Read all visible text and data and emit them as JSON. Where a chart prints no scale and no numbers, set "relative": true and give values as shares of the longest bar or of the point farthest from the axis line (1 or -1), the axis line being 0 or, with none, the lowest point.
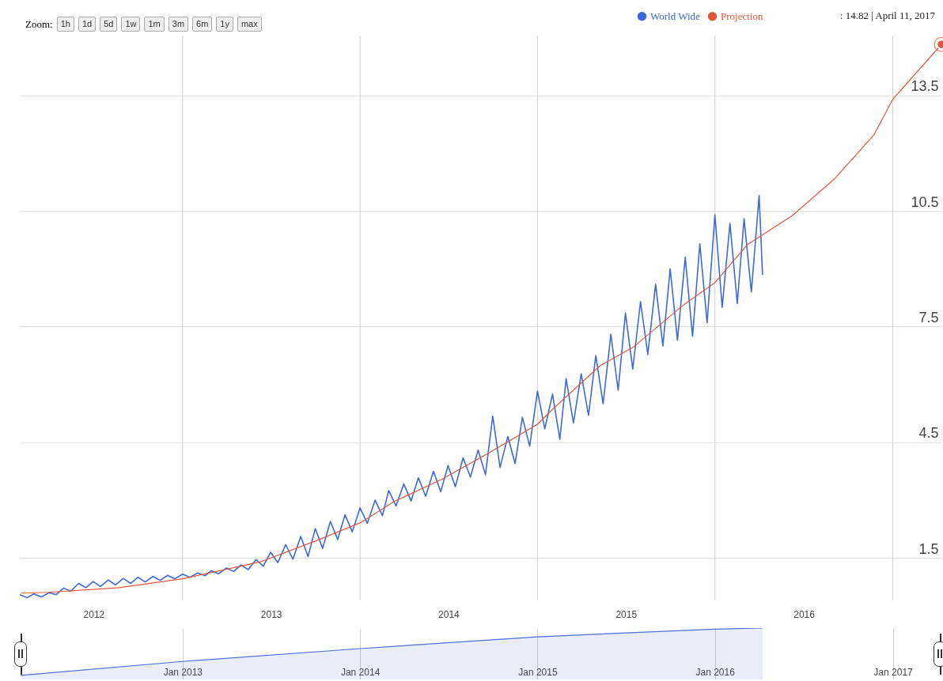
{
  "chart_data": [
    {
      "type": "line",
      "xlim": [
        "2012-02-01",
        "2017-04-11"
      ],
      "ylim": [
        0.4,
        15.05
      ],
      "xticks": [
        {
          "value": "2012-07-02",
          "label": "2012"
        },
        {
          "value": "2013-01-01",
          "label": null
        },
        {
          "value": "2013-07-02",
          "label": "2013"
        },
        {
          "value": "2014-01-01",
          "label": null
        },
        {
          "value": "2014-07-02",
          "label": "2014"
        },
        {
          "value": "2015-01-01",
          "label": null
        },
        {
          "value": "2015-07-02",
          "label": "2015"
        },
        {
          "value": "2016-01-01",
          "label": null
        },
        {
          "value": "2016-07-02",
          "label": "2016"
        },
        {
          "value": "2017-01-01",
          "label": null
        }
      ],
      "yticks": [
        1.5,
        4.5,
        7.5,
        10.5,
        13.5
      ],
      "grid": true,
      "legend": "top right",
      "annotations": [
        "Zoom:",
        "1h",
        "1d",
        "5d",
        "1w",
        "1m",
        "3m",
        "6m",
        "1y",
        "max",
        {
          "text": ": 14.82 | April 11, 2017",
          "x": "2017-04-11",
          "y": 14.82
        }
      ],
      "series": [
        {
          "name": "World Wide",
          "color": "#3d6ad6",
          "x": [
            "2012-02-01",
            "2012-02-16",
            "2012-03-01",
            "2012-03-16",
            "2012-04-01",
            "2012-04-16",
            "2012-05-01",
            "2012-05-16",
            "2012-06-01",
            "2012-06-16",
            "2012-07-01",
            "2012-07-16",
            "2012-08-01",
            "2012-08-16",
            "2012-09-01",
            "2012-09-16",
            "2012-10-01",
            "2012-10-16",
            "2012-11-01",
            "2012-11-16",
            "2012-12-01",
            "2012-12-16",
            "2013-01-01",
            "2013-01-16",
            "2013-02-01",
            "2013-02-16",
            "2013-03-01",
            "2013-03-16",
            "2013-04-01",
            "2013-04-16",
            "2013-05-01",
            "2013-05-16",
            "2013-06-01",
            "2013-06-16",
            "2013-07-01",
            "2013-07-16",
            "2013-08-01",
            "2013-08-16",
            "2013-09-01",
            "2013-09-16",
            "2013-10-01",
            "2013-10-16",
            "2013-11-01",
            "2013-11-16",
            "2013-12-01",
            "2013-12-16",
            "2014-01-01",
            "2014-01-16",
            "2014-02-01",
            "2014-02-16",
            "2014-03-01",
            "2014-03-16",
            "2014-04-01",
            "2014-04-16",
            "2014-05-01",
            "2014-05-16",
            "2014-06-01",
            "2014-06-16",
            "2014-07-01",
            "2014-07-16",
            "2014-08-01",
            "2014-08-16",
            "2014-09-01",
            "2014-09-16",
            "2014-10-01",
            "2014-10-16",
            "2014-11-01",
            "2014-11-16",
            "2014-12-01",
            "2014-12-16",
            "2015-01-01",
            "2015-01-16",
            "2015-02-01",
            "2015-02-16",
            "2015-03-01",
            "2015-03-16",
            "2015-04-01",
            "2015-04-16",
            "2015-05-01",
            "2015-05-16",
            "2015-06-01",
            "2015-06-16",
            "2015-07-01",
            "2015-07-16",
            "2015-08-01",
            "2015-08-16",
            "2015-09-01",
            "2015-09-16",
            "2015-10-01",
            "2015-10-16",
            "2015-11-01",
            "2015-11-16",
            "2015-12-01",
            "2015-12-16",
            "2016-01-01",
            "2016-01-16",
            "2016-02-01",
            "2016-02-16",
            "2016-03-01",
            "2016-03-16",
            "2016-04-01",
            "2016-04-08"
          ],
          "values": [
            0.55,
            0.47,
            0.57,
            0.49,
            0.6,
            0.55,
            0.72,
            0.64,
            0.84,
            0.73,
            0.89,
            0.76,
            0.93,
            0.8,
            0.97,
            0.84,
            1.0,
            0.88,
            1.02,
            0.92,
            1.05,
            0.96,
            1.08,
            1.0,
            1.11,
            1.04,
            1.17,
            1.09,
            1.24,
            1.15,
            1.32,
            1.2,
            1.46,
            1.29,
            1.65,
            1.38,
            1.85,
            1.47,
            2.06,
            1.54,
            2.26,
            1.75,
            2.45,
            1.98,
            2.62,
            2.18,
            2.8,
            2.4,
            3.0,
            2.6,
            3.25,
            2.85,
            3.42,
            2.98,
            3.58,
            3.1,
            3.75,
            3.22,
            3.9,
            3.35,
            4.1,
            3.6,
            4.3,
            3.66,
            5.18,
            3.85,
            4.65,
            3.95,
            5.15,
            4.4,
            5.83,
            4.85,
            5.75,
            4.58,
            6.15,
            5.0,
            6.28,
            5.2,
            6.75,
            5.5,
            7.3,
            5.85,
            7.85,
            6.4,
            8.15,
            6.78,
            8.6,
            7.0,
            9.0,
            7.15,
            9.3,
            7.25,
            9.65,
            7.6,
            10.4,
            8.0,
            10.18,
            8.1,
            10.3,
            8.4,
            10.9,
            8.84
          ]
        },
        {
          "name": "Projection",
          "color": "#e0573a",
          "x": [
            "2012-02-03",
            "2012-04-01",
            "2012-08-23",
            "2013-01-01",
            "2013-06-10",
            "2013-10-03",
            "2014-01-01",
            "2014-03-13",
            "2014-06-18",
            "2014-09-24",
            "2015-01-01",
            "2015-02-03",
            "2015-05-10",
            "2015-07-16",
            "2015-10-27",
            "2016-01-01",
            "2016-03-07",
            "2016-06-08",
            "2016-09-02",
            "2016-11-23",
            "2017-01-01",
            "2017-04-11"
          ],
          "values": [
            0.59,
            0.61,
            0.73,
            0.96,
            1.4,
            1.95,
            2.41,
            2.97,
            3.54,
            4.23,
            4.97,
            5.38,
            6.49,
            6.96,
            8.05,
            8.64,
            9.62,
            10.38,
            11.32,
            12.47,
            13.4,
            14.82
          ]
        }
      ]
    },
    {
      "type": "area",
      "relative": true,
      "color": "#4a6fd6",
      "xlim": [
        "2012-02-01",
        "2017-04-11"
      ],
      "xticks": [
        {
          "value": "2013-01-01",
          "label": "Jan 2013"
        },
        {
          "value": "2014-01-01",
          "label": "Jan 2014"
        },
        {
          "value": "2015-01-01",
          "label": "Jan 2015"
        },
        {
          "value": "2016-01-01",
          "label": "Jan 2016"
        },
        {
          "value": "2017-01-01",
          "label": "Jan 2017"
        }
      ],
      "grid": "x",
      "x": [
        "2012-02-03",
        "2013-01-01",
        "2014-01-01",
        "2015-01-01",
        "2016-01-01",
        "2016-04-08"
      ],
      "values": [
        0.08,
        0.35,
        0.6,
        0.83,
        0.98,
        1.0
      ]
    }
  ]
}
